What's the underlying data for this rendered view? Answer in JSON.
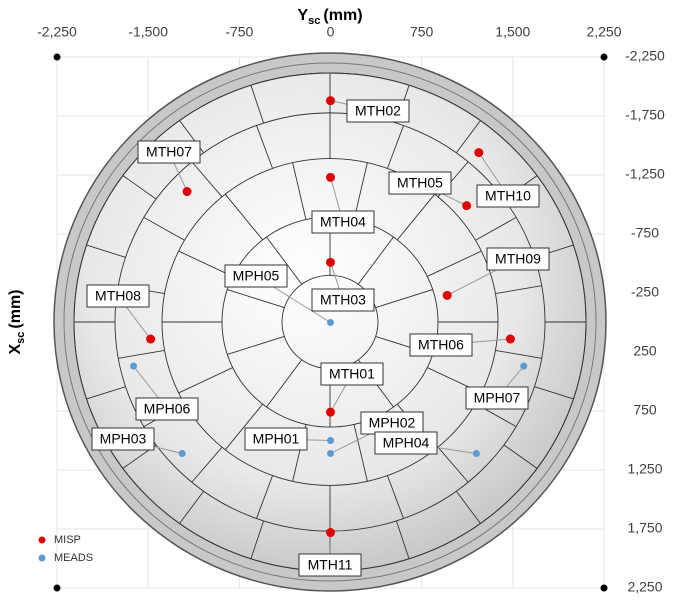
{
  "chart_data": {
    "type": "scatter",
    "x_label": [
      "Y",
      "sc",
      "(mm)"
    ],
    "y_label": [
      "X",
      "sc",
      "(mm)"
    ],
    "xlim": [
      -2250,
      2250
    ],
    "xticks": [
      {
        "value": -2250,
        "label": "-2,250"
      },
      {
        "value": -1500,
        "label": "-1,500"
      },
      -750,
      0,
      750,
      {
        "value": 1500,
        "label": "1,500"
      },
      {
        "value": 2250,
        "label": "2,250"
      }
    ],
    "ylim": [
      -2250,
      2250
    ],
    "yticks": [
      {
        "value": -2250,
        "label": "-2,250"
      },
      {
        "value": -1750,
        "label": "-1,750"
      },
      {
        "value": -1250,
        "label": "-1,250"
      },
      -750,
      -250,
      250,
      750,
      {
        "value": 1250,
        "label": "1,250"
      },
      {
        "value": 1750,
        "label": "1,750"
      },
      {
        "value": 2250,
        "label": "2,250"
      }
    ],
    "y_inverted": true,
    "grid": true,
    "legend": "bottom-left",
    "series": [
      {
        "name": "MISP",
        "color": "#e00000",
        "labels": [
          "MTH02",
          "MTH07",
          "MTH10",
          "MTH05",
          "MTH04",
          "MTH03",
          "MTH09",
          "MTH08",
          "MTH06",
          "MTH01",
          "MTH11"
        ],
        "x": [
          0,
          -1180,
          1220,
          1120,
          0,
          0,
          960,
          -1480,
          1480,
          0,
          0
        ],
        "values": [
          -1880,
          -1110,
          -1440,
          -990,
          -1230,
          -510,
          -230,
          140,
          140,
          760,
          1780
        ]
      },
      {
        "name": "MEADS",
        "color": "#5b9bd5",
        "labels": [
          "MPH05",
          "MPH06",
          "MPH03",
          "MPH01",
          "MPH02",
          "MPH04",
          "MPH07"
        ],
        "x": [
          0,
          -1620,
          -1220,
          0,
          0,
          1200,
          1590
        ],
        "values": [
          0,
          370,
          1110,
          1000,
          1110,
          1110,
          370
        ]
      }
    ]
  }
}
